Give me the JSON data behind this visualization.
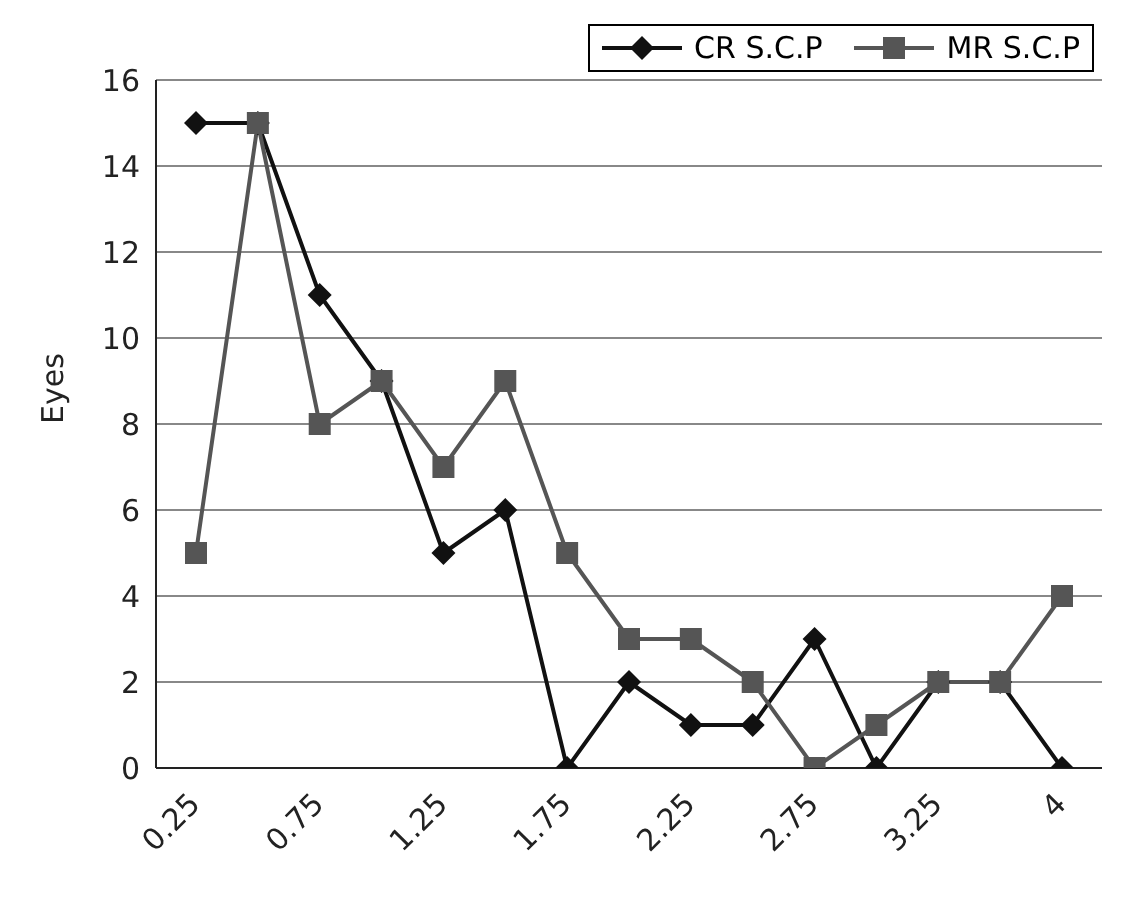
{
  "chart_data": {
    "type": "line",
    "ylabel": "Eyes",
    "categories": [
      "0.25",
      null,
      "0.75",
      null,
      "1.25",
      null,
      "1.75",
      null,
      "2.25",
      null,
      "2.75",
      null,
      "3.25",
      null,
      "4"
    ],
    "series": [
      {
        "name": "CR S.C.P",
        "color": "#111111",
        "marker": "diamond",
        "values": [
          15,
          15,
          11,
          9,
          5,
          6,
          0,
          2,
          1,
          1,
          3,
          0,
          2,
          2,
          0
        ]
      },
      {
        "name": "MR S.C.P",
        "color": "#555555",
        "marker": "square",
        "values": [
          5,
          15,
          8,
          9,
          7,
          9,
          5,
          3,
          3,
          2,
          0,
          1,
          2,
          2,
          4
        ]
      }
    ],
    "ylim": [
      0,
      16
    ],
    "yticks": [
      0,
      2,
      4,
      6,
      8,
      10,
      12,
      14,
      16
    ],
    "grid": "y",
    "legend": "top right"
  }
}
